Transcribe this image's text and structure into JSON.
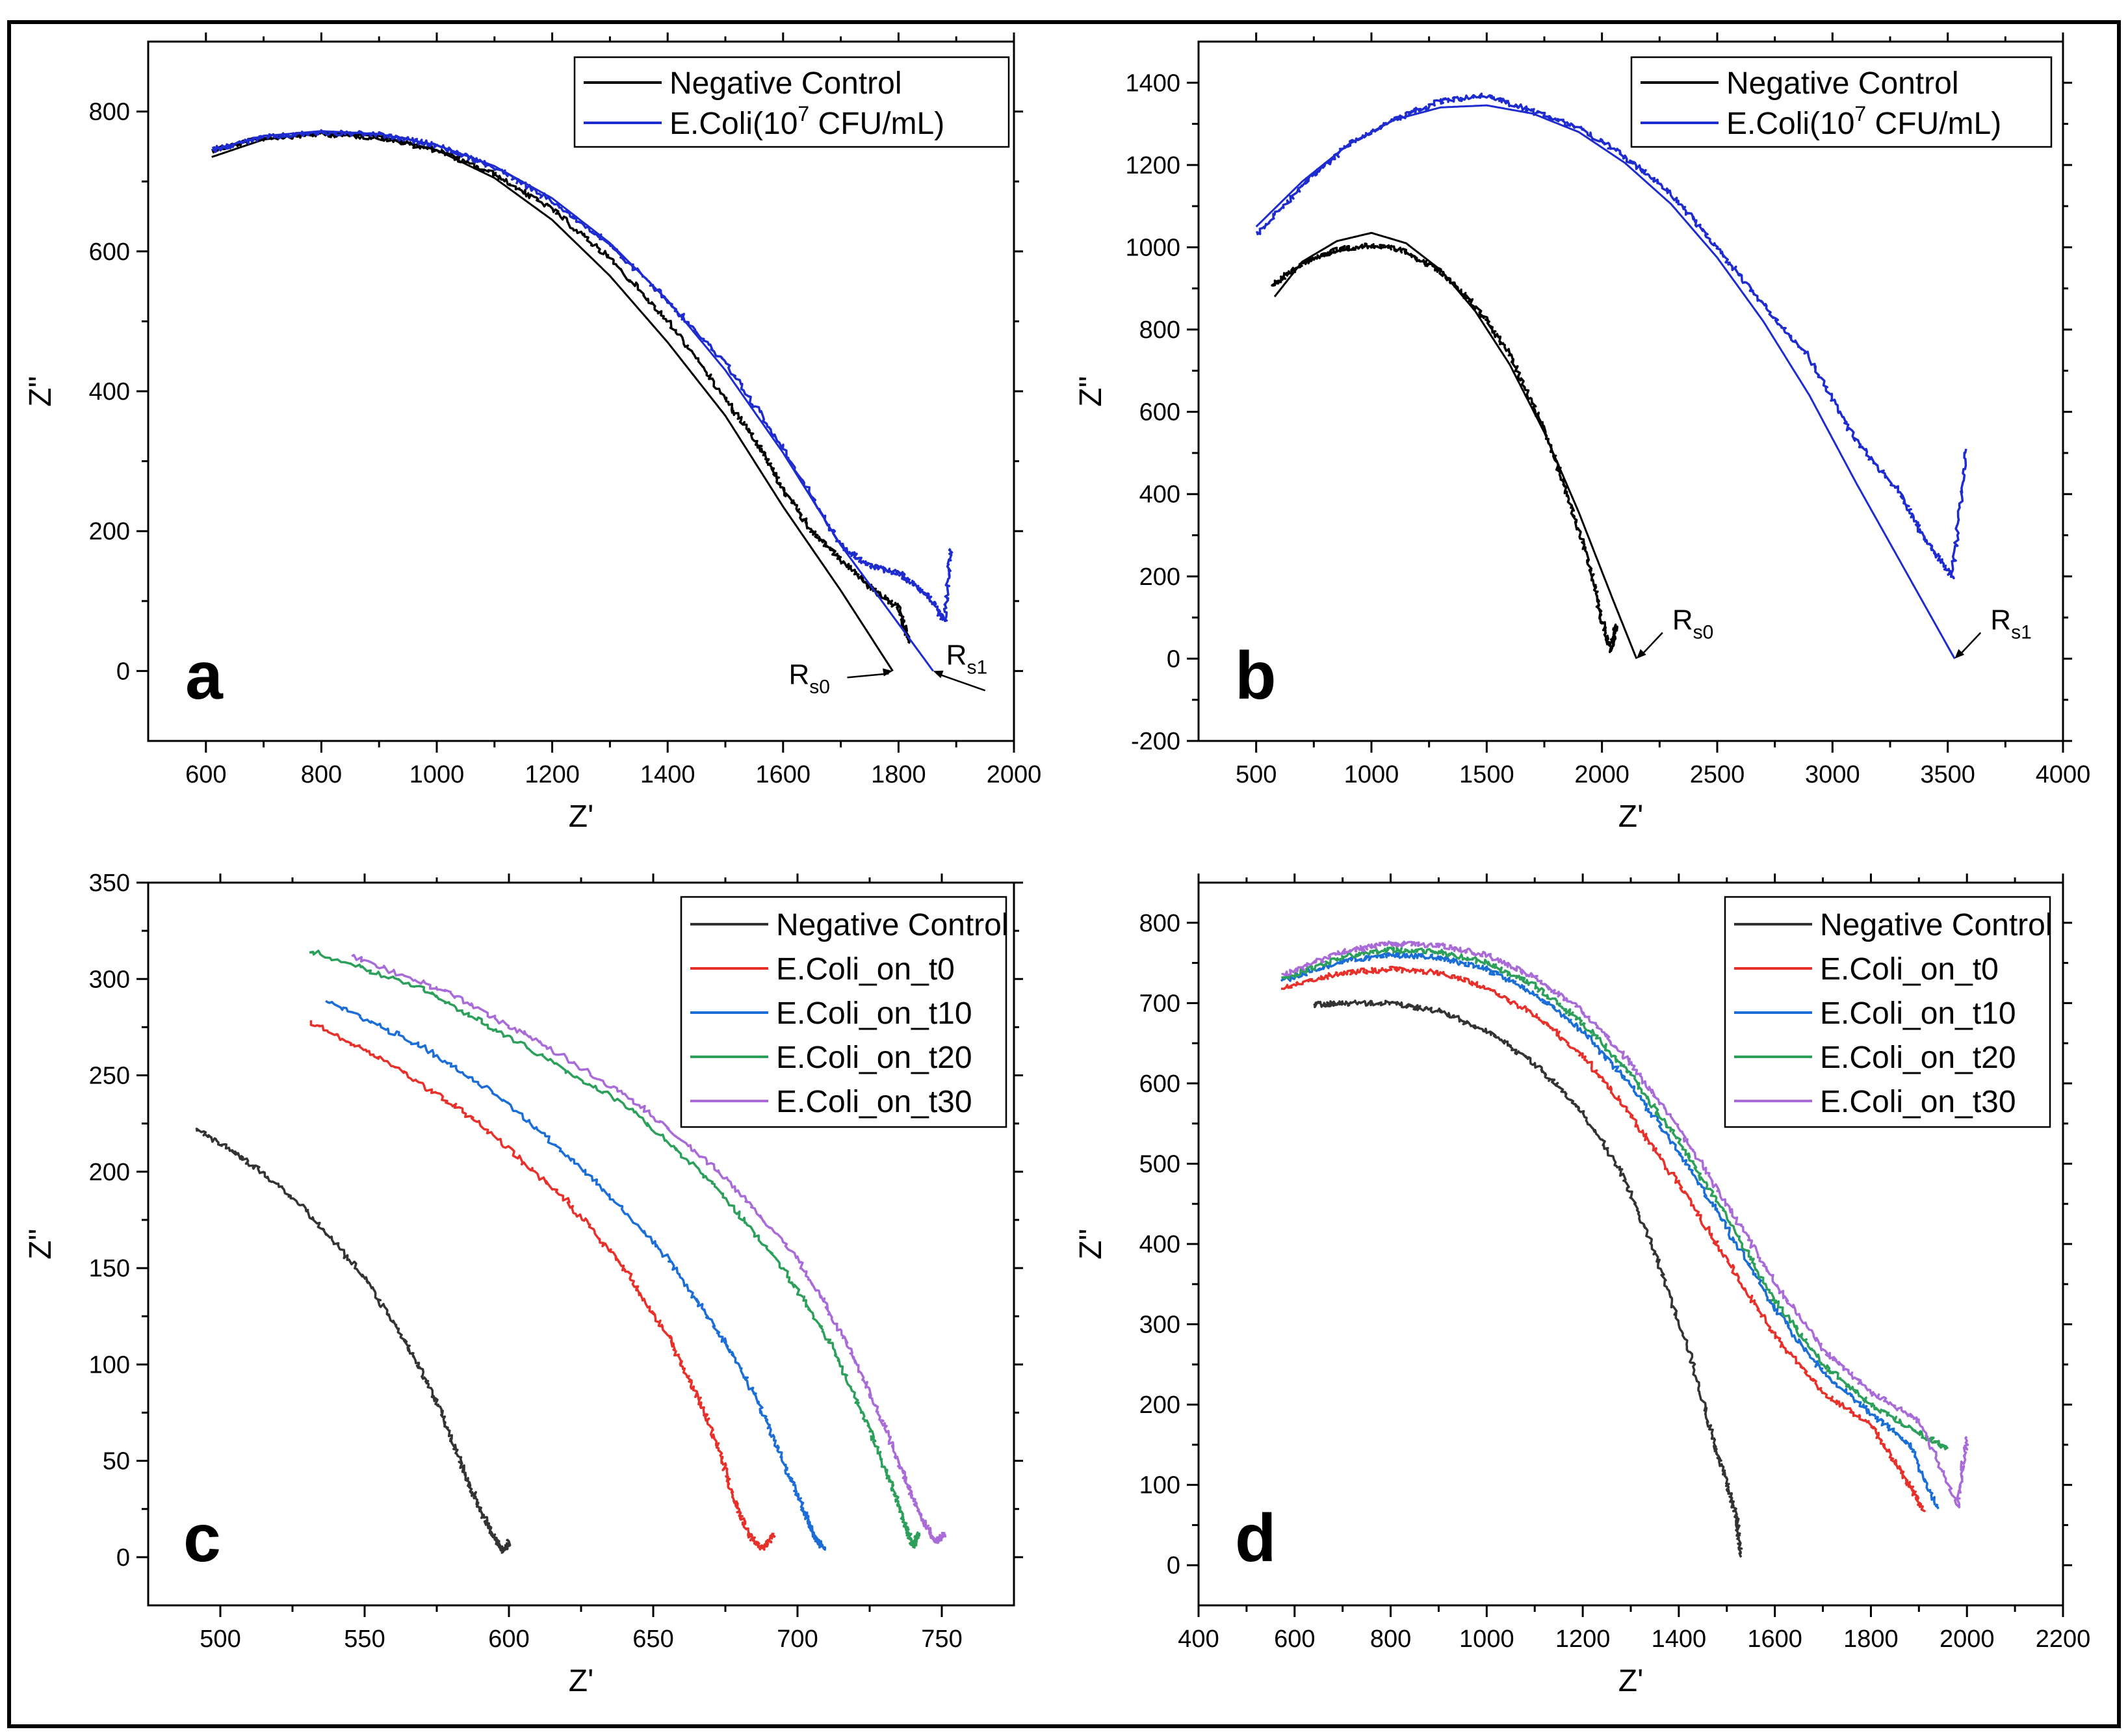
{
  "chart_data": [
    {
      "panel": "a",
      "type": "line",
      "xlabel": "Z'",
      "ylabel": "Z''",
      "xlim": [
        500,
        2000
      ],
      "ylim": [
        -100,
        900
      ],
      "xticks": [
        600,
        800,
        1000,
        1200,
        1400,
        1600,
        1800,
        2000
      ],
      "yticks": [
        0,
        200,
        400,
        600,
        800
      ],
      "legend_position": "top-right",
      "series": [
        {
          "name": "Negative Control",
          "color": "#000000",
          "noisy": true,
          "x": [
            610,
            700,
            800,
            900,
            1000,
            1100,
            1200,
            1300,
            1400,
            1500,
            1560,
            1600,
            1650,
            1700,
            1750,
            1800,
            1820
          ],
          "y": [
            745,
            762,
            768,
            763,
            745,
            710,
            660,
            590,
            500,
            390,
            320,
            260,
            200,
            160,
            120,
            90,
            40
          ]
        },
        {
          "name": "Negative Control fit",
          "color": "#000000",
          "noisy": false,
          "x": [
            610,
            700,
            800,
            900,
            1000,
            1100,
            1200,
            1300,
            1400,
            1500,
            1600,
            1700,
            1790
          ],
          "y": [
            735,
            760,
            770,
            765,
            745,
            705,
            645,
            565,
            470,
            365,
            235,
            115,
            0
          ]
        },
        {
          "name": "E.Coli(10^7 CFU/mL)",
          "color": "#1e2ccf",
          "noisy": true,
          "x": [
            610,
            700,
            800,
            900,
            1000,
            1100,
            1200,
            1300,
            1400,
            1500,
            1600,
            1700,
            1750,
            1800,
            1850,
            1880,
            1890
          ],
          "y": [
            745,
            763,
            770,
            767,
            752,
            720,
            672,
            610,
            530,
            440,
            320,
            180,
            150,
            140,
            110,
            70,
            175
          ]
        },
        {
          "name": "E.Coli(10^7 CFU/mL) fit",
          "color": "#1e2ccf",
          "noisy": false,
          "x": [
            610,
            700,
            800,
            900,
            1000,
            1100,
            1200,
            1300,
            1400,
            1500,
            1600,
            1700,
            1780,
            1860
          ],
          "y": [
            745,
            765,
            772,
            768,
            752,
            722,
            676,
            612,
            530,
            430,
            312,
            180,
            90,
            0
          ]
        }
      ],
      "legend": [
        {
          "label": "Negative Control",
          "color": "#000000"
        },
        {
          "label": "E.Coli(10",
          "sup": "7",
          "label_end": " CFU/mL)",
          "color": "#1e2ccf"
        }
      ],
      "annotations": [
        {
          "text": "R",
          "sub": "s0",
          "x": 1790,
          "y": 0
        },
        {
          "text": "R",
          "sub": "s1",
          "x": 1860,
          "y": 0
        }
      ]
    },
    {
      "panel": "b",
      "type": "line",
      "xlabel": "Z'",
      "ylabel": "Z''",
      "xlim": [
        250,
        4000
      ],
      "ylim": [
        -200,
        1500
      ],
      "xticks": [
        500,
        1000,
        1500,
        2000,
        2500,
        3000,
        3500,
        4000
      ],
      "yticks": [
        -200,
        0,
        200,
        400,
        600,
        800,
        1000,
        1200,
        1400
      ],
      "legend_position": "top-right",
      "series": [
        {
          "name": "Negative Control",
          "color": "#000000",
          "noisy": true,
          "x": [
            570,
            700,
            850,
            1000,
            1150,
            1300,
            1450,
            1600,
            1750,
            1850,
            1950,
            2000,
            2040,
            2060
          ],
          "y": [
            910,
            960,
            995,
            1005,
            990,
            940,
            860,
            740,
            560,
            400,
            220,
            90,
            20,
            80
          ]
        },
        {
          "name": "Negative Control fit",
          "color": "#000000",
          "noisy": false,
          "x": [
            580,
            700,
            850,
            1000,
            1150,
            1300,
            1450,
            1600,
            1750,
            1900,
            2050,
            2150
          ],
          "y": [
            880,
            965,
            1015,
            1035,
            1010,
            945,
            845,
            715,
            550,
            355,
            140,
            0
          ]
        },
        {
          "name": "E.Coli(10^7 CFU/mL)",
          "color": "#1e2ccf",
          "noisy": true,
          "x": [
            500,
            700,
            900,
            1100,
            1300,
            1500,
            1700,
            1900,
            2100,
            2300,
            2500,
            2700,
            2900,
            3100,
            3300,
            3400,
            3520,
            3580
          ],
          "y": [
            1030,
            1150,
            1250,
            1310,
            1355,
            1370,
            1330,
            1290,
            1220,
            1130,
            1000,
            860,
            730,
            530,
            400,
            290,
            200,
            510
          ]
        },
        {
          "name": "E.Coli(10^7 CFU/mL) fit",
          "color": "#1e2ccf",
          "noisy": false,
          "x": [
            500,
            700,
            900,
            1100,
            1300,
            1500,
            1700,
            1900,
            2100,
            2300,
            2500,
            2700,
            2900,
            3100,
            3300,
            3530
          ],
          "y": [
            1050,
            1160,
            1250,
            1310,
            1340,
            1345,
            1325,
            1280,
            1205,
            1105,
            975,
            820,
            640,
            430,
            230,
            0
          ]
        }
      ],
      "legend": [
        {
          "label": "Negative Control",
          "color": "#000000"
        },
        {
          "label": "E.Coli(10",
          "sup": "7",
          "label_end": " CFU/mL)",
          "color": "#1e2ccf"
        }
      ],
      "annotations": [
        {
          "text": "R",
          "sub": "s0",
          "x": 2150,
          "y": 0
        },
        {
          "text": "R",
          "sub": "s1",
          "x": 3530,
          "y": 0
        }
      ]
    },
    {
      "panel": "c",
      "type": "line",
      "xlabel": "Z'",
      "ylabel": "Z''",
      "xlim": [
        475,
        775
      ],
      "ylim": [
        -25,
        350
      ],
      "xticks": [
        500,
        550,
        600,
        650,
        700,
        750
      ],
      "yticks": [
        0,
        50,
        100,
        150,
        200,
        250,
        300,
        350
      ],
      "legend_position": "top-right",
      "series": [
        {
          "name": "Negative Control",
          "color": "#333333",
          "noisy": true,
          "x": [
            492,
            510,
            530,
            550,
            565,
            575,
            583,
            590,
            595,
            598,
            600
          ],
          "y": [
            222,
            205,
            180,
            145,
            110,
            80,
            50,
            25,
            10,
            3,
            8
          ]
        },
        {
          "name": "E.Coli_on_t0",
          "color": "#e8302a",
          "noisy": true,
          "x": [
            531,
            560,
            590,
            620,
            640,
            655,
            665,
            673,
            678,
            683,
            688,
            692
          ],
          "y": [
            278,
            255,
            225,
            185,
            150,
            115,
            85,
            55,
            30,
            12,
            4,
            12
          ]
        },
        {
          "name": "E.Coli_on_t10",
          "color": "#1b6ed6",
          "noisy": true,
          "x": [
            536,
            570,
            600,
            630,
            655,
            672,
            685,
            695,
            702,
            706,
            709
          ],
          "y": [
            289,
            265,
            235,
            195,
            155,
            118,
            85,
            50,
            25,
            10,
            5
          ]
        },
        {
          "name": "E.Coli_on_t20",
          "color": "#2ca05a",
          "noisy": true,
          "x": [
            531,
            570,
            600,
            640,
            670,
            695,
            712,
            724,
            732,
            737,
            740,
            742
          ],
          "y": [
            315,
            295,
            270,
            235,
            195,
            150,
            110,
            70,
            40,
            18,
            6,
            12
          ]
        },
        {
          "name": "E.Coli_on_t30",
          "color": "#a86bd8",
          "noisy": true,
          "x": [
            546,
            580,
            610,
            645,
            675,
            700,
            716,
            728,
            737,
            743,
            748,
            751
          ],
          "y": [
            312,
            292,
            268,
            235,
            197,
            155,
            115,
            75,
            42,
            20,
            8,
            12
          ]
        }
      ],
      "legend": [
        {
          "label": "Negative Control",
          "color": "#333333"
        },
        {
          "label": "E.Coli_on_t0",
          "color": "#e8302a"
        },
        {
          "label": "E.Coli_on_t10",
          "color": "#1b6ed6"
        },
        {
          "label": "E.Coli_on_t20",
          "color": "#2ca05a"
        },
        {
          "label": "E.Coli_on_t30",
          "color": "#a86bd8"
        }
      ],
      "annotations": []
    },
    {
      "panel": "d",
      "type": "line",
      "xlabel": "Z'",
      "ylabel": "Z''",
      "xlim": [
        400,
        2200
      ],
      "ylim": [
        -50,
        850
      ],
      "xticks": [
        400,
        600,
        800,
        1000,
        1200,
        1400,
        1600,
        1800,
        2000,
        2200
      ],
      "yticks": [
        0,
        100,
        200,
        300,
        400,
        500,
        600,
        700,
        800
      ],
      "legend_position": "top-right",
      "series": [
        {
          "name": "Negative Control",
          "color": "#333333",
          "noisy": true,
          "x": [
            640,
            700,
            800,
            900,
            1000,
            1100,
            1200,
            1280,
            1350,
            1420,
            1470,
            1500,
            1520,
            1530
          ],
          "y": [
            698,
            700,
            700,
            690,
            665,
            625,
            565,
            490,
            390,
            270,
            160,
            100,
            60,
            10
          ]
        },
        {
          "name": "E.Coli_on_t0",
          "color": "#e8302a",
          "noisy": true,
          "x": [
            575,
            700,
            800,
            900,
            1000,
            1100,
            1200,
            1300,
            1400,
            1500,
            1600,
            1700,
            1800,
            1870,
            1910
          ],
          "y": [
            720,
            738,
            742,
            738,
            720,
            685,
            635,
            560,
            475,
            380,
            285,
            215,
            175,
            110,
            68
          ]
        },
        {
          "name": "E.Coli_on_t10",
          "color": "#1b6ed6",
          "noisy": true,
          "x": [
            575,
            700,
            800,
            900,
            1000,
            1100,
            1200,
            1300,
            1400,
            1500,
            1600,
            1700,
            1800,
            1880,
            1940
          ],
          "y": [
            728,
            752,
            760,
            757,
            742,
            712,
            665,
            598,
            515,
            420,
            320,
            240,
            190,
            150,
            70
          ]
        },
        {
          "name": "E.Coli_on_t20",
          "color": "#2ca05a",
          "noisy": true,
          "x": [
            575,
            700,
            800,
            900,
            1000,
            1100,
            1200,
            1300,
            1400,
            1500,
            1600,
            1700,
            1800,
            1900,
            1960
          ],
          "y": [
            730,
            758,
            766,
            764,
            750,
            722,
            675,
            610,
            528,
            432,
            330,
            250,
            200,
            165,
            145
          ]
        },
        {
          "name": "E.Coli_on_t30",
          "color": "#a86bd8",
          "noisy": true,
          "x": [
            575,
            700,
            800,
            900,
            1000,
            1100,
            1200,
            1300,
            1400,
            1500,
            1600,
            1700,
            1800,
            1900,
            1980,
            2000
          ],
          "y": [
            735,
            764,
            774,
            772,
            760,
            733,
            690,
            625,
            545,
            450,
            352,
            270,
            215,
            180,
            75,
            160
          ]
        }
      ],
      "legend": [
        {
          "label": "Negative Control",
          "color": "#333333"
        },
        {
          "label": "E.Coli_on_t0",
          "color": "#e8302a"
        },
        {
          "label": "E.Coli_on_t10",
          "color": "#1b6ed6"
        },
        {
          "label": "E.Coli_on_t20",
          "color": "#2ca05a"
        },
        {
          "label": "E.Coli_on_t30",
          "color": "#a86bd8"
        }
      ],
      "annotations": []
    }
  ]
}
